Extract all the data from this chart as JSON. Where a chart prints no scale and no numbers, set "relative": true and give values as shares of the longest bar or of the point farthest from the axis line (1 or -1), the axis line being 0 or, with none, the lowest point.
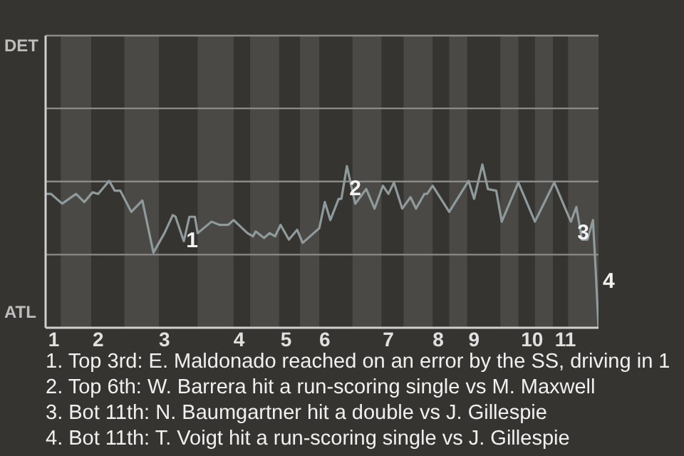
{
  "chart_data": {
    "type": "line",
    "marker": "none",
    "relative": true,
    "ref_lines": [
      {
        "axis": "y",
        "value": 0.448,
        "color": "#8a8a88"
      },
      {
        "axis": "y",
        "value": 0.896,
        "color": "#8a8a88"
      },
      {
        "axis": "y",
        "value": 1.344,
        "color": "#8a8a88"
      }
    ],
    "categories": [
      null,
      null,
      null,
      "1",
      null,
      null,
      null,
      null,
      null,
      null,
      null,
      null,
      null,
      null,
      null,
      null,
      null,
      null,
      null,
      "2",
      null,
      null,
      null,
      null,
      null,
      null,
      null,
      null,
      null,
      null,
      null,
      null,
      null,
      null,
      null,
      null,
      null,
      null,
      null,
      null,
      null,
      null,
      null,
      "3",
      null,
      null,
      null,
      null,
      null,
      null,
      null,
      null,
      null,
      null,
      null,
      null,
      null,
      null,
      null,
      null,
      null,
      null,
      null,
      null,
      null,
      null,
      null,
      null,
      null,
      null,
      "4",
      null,
      null,
      null,
      null,
      null,
      null,
      null,
      null,
      null,
      null,
      null,
      null,
      null,
      null,
      null,
      null,
      "5",
      null,
      null,
      null,
      null,
      null,
      null,
      null,
      null,
      null,
      null,
      null,
      null,
      null,
      "6",
      null,
      null,
      null,
      null,
      null,
      null,
      null,
      null,
      null,
      null,
      null,
      null,
      null,
      null,
      null,
      null,
      null,
      null,
      null,
      null,
      null,
      null,
      "7",
      null,
      null,
      null,
      null,
      null,
      null,
      null,
      null,
      null,
      null,
      null,
      null,
      null,
      null,
      null,
      null,
      null,
      "8",
      null,
      null,
      null,
      null,
      null,
      null,
      null,
      null,
      null,
      null,
      null,
      null,
      "9",
      null,
      null,
      null,
      null,
      null,
      null,
      null,
      null,
      null,
      null,
      null,
      null,
      null,
      null,
      null,
      null,
      null,
      null,
      null,
      null,
      "10",
      null,
      null,
      null,
      null,
      null,
      null,
      null,
      null,
      null,
      null,
      null,
      "11",
      null,
      null,
      null,
      null,
      null,
      null,
      null,
      null,
      null,
      null,
      null,
      null
    ],
    "series": [
      {
        "color": "#8e9a9b",
        "values": [
          0.82,
          null,
          0.82,
          null,
          null,
          null,
          0.76,
          null,
          null,
          null,
          null,
          0.82,
          null,
          null,
          0.77,
          null,
          null,
          0.83,
          null,
          0.82,
          null,
          null,
          null,
          0.9,
          null,
          0.84,
          null,
          0.84,
          null,
          null,
          null,
          0.71,
          null,
          null,
          null,
          0.78,
          null,
          null,
          null,
          0.46,
          null,
          null,
          null,
          0.58,
          null,
          null,
          0.69,
          0.68,
          null,
          null,
          0.53,
          null,
          0.68,
          null,
          0.68,
          0.58,
          null,
          null,
          null,
          null,
          0.65,
          null,
          null,
          0.63,
          null,
          null,
          0.63,
          null,
          0.66,
          null,
          null,
          null,
          null,
          0.58,
          null,
          0.56,
          0.59,
          null,
          null,
          0.55,
          null,
          0.58,
          null,
          0.56,
          null,
          0.63,
          null,
          null,
          0.54,
          null,
          null,
          0.6,
          null,
          0.52,
          null,
          null,
          null,
          0.58,
          null,
          0.61,
          null,
          0.77,
          null,
          0.66,
          null,
          null,
          0.79,
          0.79,
          null,
          0.99,
          null,
          null,
          0.76,
          null,
          null,
          null,
          0.85,
          null,
          null,
          0.73,
          null,
          null,
          0.87,
          null,
          0.82,
          null,
          0.89,
          null,
          null,
          0.73,
          null,
          null,
          0.8,
          null,
          0.73,
          null,
          null,
          0.82,
          0.82,
          null,
          0.87,
          null,
          null,
          null,
          null,
          null,
          0.71,
          null,
          null,
          null,
          null,
          null,
          null,
          0.9,
          null,
          0.79,
          null,
          null,
          1,
          null,
          0.85,
          null,
          null,
          0.84,
          null,
          0.65,
          null,
          null,
          null,
          null,
          null,
          0.89,
          null,
          null,
          null,
          null,
          null,
          0.65,
          null,
          null,
          null,
          null,
          null,
          null,
          0.89,
          null,
          null,
          null,
          null,
          null,
          0.65,
          null,
          0.74,
          null,
          0.54,
          null,
          0.54,
          null,
          0.66,
          0.35,
          0
        ]
      }
    ],
    "annotations": [
      "DET",
      "ATL",
      {
        "text": "1",
        "y": 0.54
      },
      {
        "text": "2",
        "y": 0.86
      },
      {
        "text": "3",
        "y": 0.59
      },
      "4",
      "1. Top 3rd: E. Maldonado reached on an error by the SS, driving in 1",
      "2. Top 6th: W. Barrera hit a run-scoring single vs M. Maxwell",
      "3. Bot 11th: N. Baumgartner hit a double vs J. Gillespie",
      "4. Bot 11th: T. Voigt hit a run-scoring single vs J. Gillespie"
    ]
  }
}
